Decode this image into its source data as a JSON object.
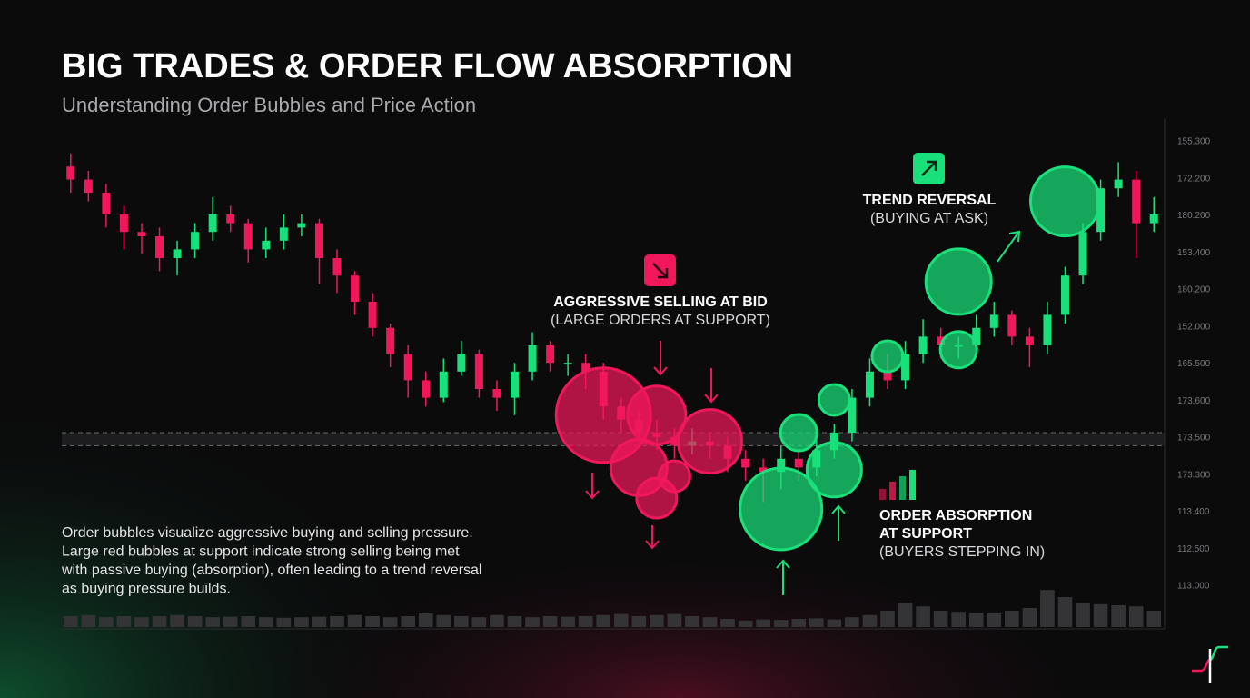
{
  "chart_data": {
    "type": "candlestick",
    "title": "BIG TRADES & ORDER FLOW ABSORPTION",
    "subtitle": "Understanding Order Bubbles and Price Action",
    "open": [
      91,
      88,
      85,
      80,
      76,
      75,
      70,
      72,
      76,
      80,
      78,
      72,
      74,
      77,
      78,
      70,
      66,
      60,
      54,
      48,
      42,
      38,
      44,
      48,
      40,
      38,
      44,
      50,
      46,
      46,
      44,
      36,
      33,
      30,
      29,
      27,
      28,
      27,
      24,
      22,
      21,
      24,
      22,
      26,
      30,
      38,
      44,
      42,
      48,
      52,
      50,
      50,
      54,
      57,
      52,
      50,
      57,
      66,
      76,
      86,
      88,
      78
    ],
    "high": [
      94,
      90,
      87,
      82,
      78,
      77,
      74,
      78,
      84,
      82,
      79,
      77,
      80,
      80,
      79,
      72,
      67,
      62,
      55,
      50,
      44,
      47,
      51,
      49,
      42,
      46,
      53,
      51,
      48,
      48,
      46,
      38,
      35,
      33,
      31,
      31,
      30,
      29,
      26,
      24,
      27,
      26,
      30,
      32,
      40,
      47,
      48,
      51,
      56,
      54,
      52,
      57,
      60,
      58,
      54,
      60,
      68,
      78,
      88,
      92,
      90,
      84
    ],
    "low": [
      85,
      83,
      77,
      72,
      71,
      67,
      66,
      70,
      74,
      76,
      69,
      70,
      72,
      75,
      64,
      62,
      57,
      52,
      45,
      38,
      36,
      37,
      43,
      38,
      35,
      34,
      42,
      44,
      43,
      40,
      33,
      30,
      28,
      26,
      24,
      25,
      24,
      21,
      19,
      14,
      17,
      19,
      20,
      24,
      28,
      36,
      40,
      40,
      46,
      47,
      47,
      48,
      52,
      50,
      45,
      48,
      55,
      64,
      74,
      84,
      70,
      76
    ],
    "close": [
      88,
      85,
      80,
      76,
      75,
      70,
      72,
      76,
      80,
      78,
      72,
      74,
      77,
      78,
      70,
      66,
      60,
      54,
      48,
      42,
      38,
      44,
      48,
      40,
      38,
      44,
      50,
      46,
      46,
      44,
      36,
      33,
      30,
      29,
      27,
      28,
      27,
      24,
      22,
      21,
      24,
      22,
      26,
      30,
      38,
      44,
      42,
      48,
      52,
      50,
      50,
      54,
      57,
      52,
      50,
      57,
      66,
      76,
      86,
      88,
      78,
      80
    ],
    "volume": [
      20,
      22,
      18,
      20,
      18,
      20,
      22,
      20,
      18,
      19,
      20,
      18,
      17,
      18,
      19,
      20,
      22,
      20,
      18,
      20,
      25,
      22,
      20,
      18,
      22,
      20,
      18,
      20,
      19,
      20,
      22,
      24,
      20,
      22,
      24,
      20,
      18,
      15,
      12,
      14,
      13,
      15,
      16,
      14,
      18,
      22,
      30,
      45,
      38,
      30,
      28,
      26,
      25,
      30,
      35,
      68,
      55,
      45,
      42,
      40,
      38,
      30
    ],
    "up_color": "#19e07a",
    "down_color": "#f0185a",
    "ylim": [
      0,
      100
    ],
    "volume_lim": [
      0,
      100
    ],
    "support_zone": [
      27,
      30
    ],
    "price_labels": [
      "155.300",
      "172.200",
      "180.200",
      "153.400",
      "180.200",
      "152.000",
      "165.500",
      "173.600",
      "173.500",
      "173.300",
      "113.400",
      "112.500",
      "113.000"
    ],
    "bubbles": [
      {
        "index": 30,
        "value": 34,
        "size": 52,
        "color": "#f0185a"
      },
      {
        "index": 33,
        "value": 34,
        "size": 32,
        "color": "#f0185a"
      },
      {
        "index": 36,
        "value": 28,
        "size": 35,
        "color": "#f0185a"
      },
      {
        "index": 32,
        "value": 22,
        "size": 31,
        "color": "#f0185a"
      },
      {
        "index": 34,
        "value": 20,
        "size": 17,
        "color": "#f0185a"
      },
      {
        "index": 33,
        "value": 15,
        "size": 22,
        "color": "#f0185a"
      },
      {
        "index": 40,
        "value": 12.5,
        "size": 45,
        "color": "#19e07a"
      },
      {
        "index": 41,
        "value": 30,
        "size": 20,
        "color": "#19e07a"
      },
      {
        "index": 43,
        "value": 21.5,
        "size": 30,
        "color": "#19e07a"
      },
      {
        "index": 43,
        "value": 37.5,
        "size": 17,
        "color": "#19e07a"
      },
      {
        "index": 46,
        "value": 47.5,
        "size": 17,
        "color": "#19e07a"
      },
      {
        "index": 50,
        "value": 49,
        "size": 20,
        "color": "#19e07a"
      },
      {
        "index": 50,
        "value": 64.6,
        "size": 36,
        "color": "#19e07a"
      },
      {
        "index": 56,
        "value": 83,
        "size": 38,
        "color": "#19e07a"
      }
    ],
    "annotations": {
      "selling": [
        "AGGRESSIVE SELLING AT BID",
        "(LARGE ORDERS AT SUPPORT)"
      ],
      "reversal": [
        "TREND REVERSAL",
        "(BUYING AT ASK)"
      ],
      "absorption": [
        "ORDER ABSORPTION",
        "AT SUPPORT",
        "(BUYERS STEPPING IN)"
      ]
    },
    "description": [
      "Order bubbles visualize aggressive buying and selling pressure.",
      "Large red bubbles at support indicate strong selling being met",
      "with passive buying (absorption), often leading to a trend reversal",
      "as buying pressure builds."
    ]
  }
}
